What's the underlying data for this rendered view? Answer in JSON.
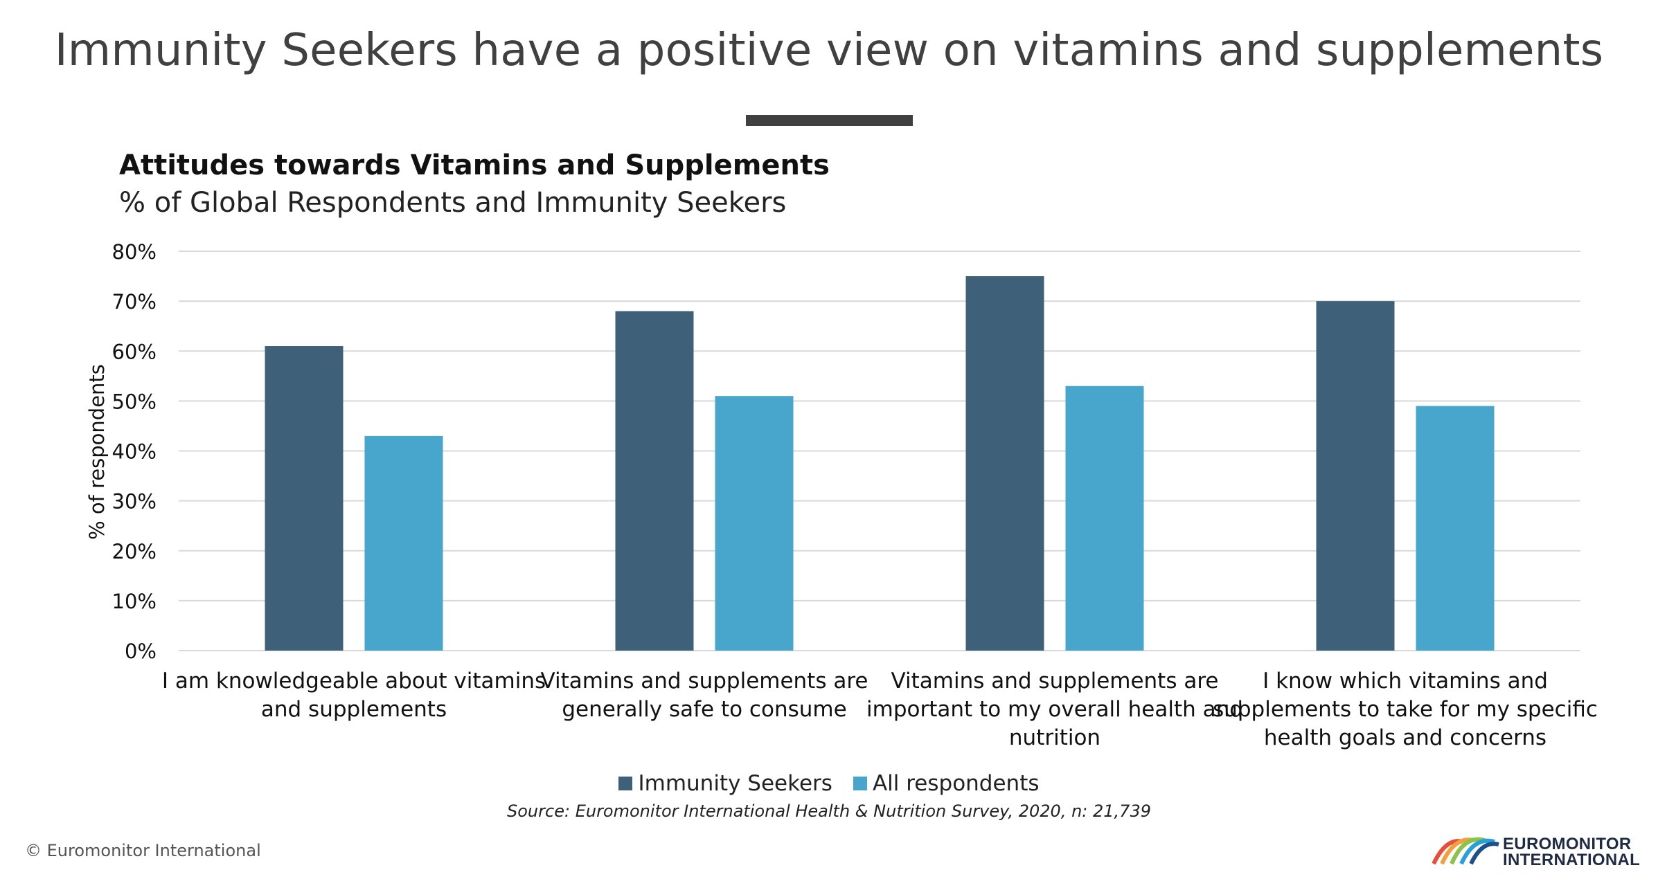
{
  "slide": {
    "title": "Immunity Seekers have a positive view on vitamins and supplements"
  },
  "footer": {
    "source": "Source: Euromonitor International Health & Nutrition Survey, 2020, n: 21,739",
    "copyright": "© Euromonitor International",
    "logo_line1": "EUROMONITOR",
    "logo_line2": "INTERNATIONAL"
  },
  "colors": {
    "immunity_seekers": "#3f6079",
    "all_respondents": "#48a6cc",
    "grid": "#d9d9d9",
    "title": "#404040"
  },
  "chart_data": {
    "type": "bar",
    "title": "Attitudes towards Vitamins and Supplements",
    "subtitle": "% of Global Respondents and Immunity Seekers",
    "xlabel": "",
    "ylabel": "% of respondents",
    "ylim": [
      0,
      80
    ],
    "yticks": [
      0,
      10,
      20,
      30,
      40,
      50,
      60,
      70,
      80
    ],
    "ytick_labels": [
      "0%",
      "10%",
      "20%",
      "30%",
      "40%",
      "50%",
      "60%",
      "70%",
      "80%"
    ],
    "grid": true,
    "legend_position": "bottom",
    "categories": [
      [
        "I am knowledgeable about vitamins",
        "and supplements"
      ],
      [
        "Vitamins and supplements are",
        "generally safe to consume"
      ],
      [
        "Vitamins and supplements are",
        "important to my overall health and",
        "nutrition"
      ],
      [
        "I know which vitamins and",
        "supplements to take for my specific",
        "health goals and concerns"
      ]
    ],
    "series": [
      {
        "name": "Immunity Seekers",
        "color": "#3f6079",
        "values": [
          61,
          68,
          75,
          70
        ]
      },
      {
        "name": "All respondents",
        "color": "#48a6cc",
        "values": [
          43,
          51,
          53,
          49
        ]
      }
    ]
  }
}
